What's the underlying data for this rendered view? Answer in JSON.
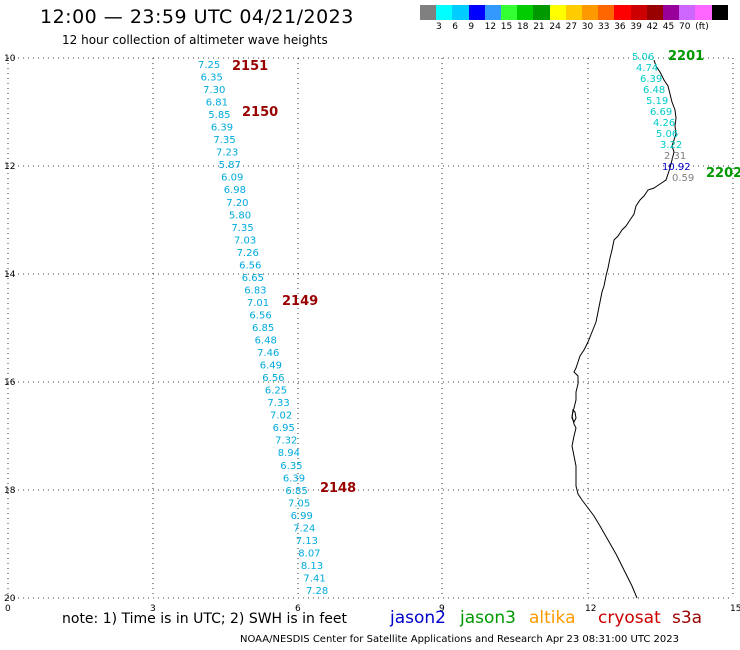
{
  "header": {
    "title": "12:00 — 23:59 UTC 04/21/2023",
    "subtitle": "12 hour collection of altimeter wave heights"
  },
  "colorbar": {
    "colors": [
      "#808080",
      "#00ffff",
      "#00ccff",
      "#0000ff",
      "#3399ff",
      "#33ff33",
      "#00cc00",
      "#009900",
      "#ffff00",
      "#ffcc00",
      "#ff9900",
      "#ff6600",
      "#ff0000",
      "#cc0000",
      "#990000",
      "#990099",
      "#cc66ff",
      "#ff66ff",
      "#000000"
    ],
    "labels": [
      "3",
      "6",
      "9",
      "12",
      "15",
      "18",
      "21",
      "24",
      "27",
      "30",
      "33",
      "36",
      "39",
      "42",
      "45",
      "70",
      "(ft)"
    ]
  },
  "axes": {
    "lat_ticks": [
      "10",
      "12",
      "14",
      "16",
      "18",
      "20"
    ],
    "lon_ticks": [
      "0",
      "3",
      "6",
      "9",
      "12",
      "15"
    ]
  },
  "passes": [
    {
      "id": "2151",
      "color": "#990000"
    },
    {
      "id": "2150",
      "color": "#990000"
    },
    {
      "id": "2149",
      "color": "#990000"
    },
    {
      "id": "2148",
      "color": "#990000"
    },
    {
      "id": "2201",
      "color": "#009900"
    },
    {
      "id": "2202",
      "color": "#009900"
    }
  ],
  "track_a": {
    "color": "#00aadd",
    "values": [
      "7.25",
      "6.35",
      "7.30",
      "6.81",
      "5.85",
      "6.39",
      "7.35",
      "7.23",
      "5.87",
      "6.09",
      "6.98",
      "7.20",
      "5.80",
      "7.35",
      "7.03",
      "7.26",
      "6.56",
      "6.65",
      "6.83",
      "7.01",
      "6.56",
      "6.85",
      "6.48",
      "7.46",
      "6.49",
      "6.56",
      "6.25",
      "7.33",
      "7.02",
      "6.95",
      "7.32",
      "8.94",
      "6.35",
      "6.39",
      "6.85",
      "7.05",
      "6.99",
      "7.24",
      "7.13",
      "8.07",
      "8.13",
      "7.41",
      "7.28"
    ]
  },
  "track_b": {
    "values": [
      "5.06",
      "4.74",
      "6.39",
      "6.48",
      "5.19",
      "6.69",
      "4.26",
      "5.06",
      "3.22",
      "2.31",
      "10.92",
      "0.59"
    ],
    "colors": [
      "#00cccc",
      "#00cccc",
      "#00cccc",
      "#00cccc",
      "#00cccc",
      "#00cccc",
      "#00cccc",
      "#00cccc",
      "#00cccc",
      "#808080",
      "#0000cc",
      "#808080"
    ]
  },
  "footer": {
    "note": "note: 1) Time is in UTC; 2) SWH is in feet",
    "legend": [
      "jason2",
      "jason3",
      "altika",
      "cryosat",
      "s3a"
    ],
    "credit": "NOAA/NESDIS Center for Satellite Applications and Research    Apr 23 08:31:00 UTC 2023"
  }
}
